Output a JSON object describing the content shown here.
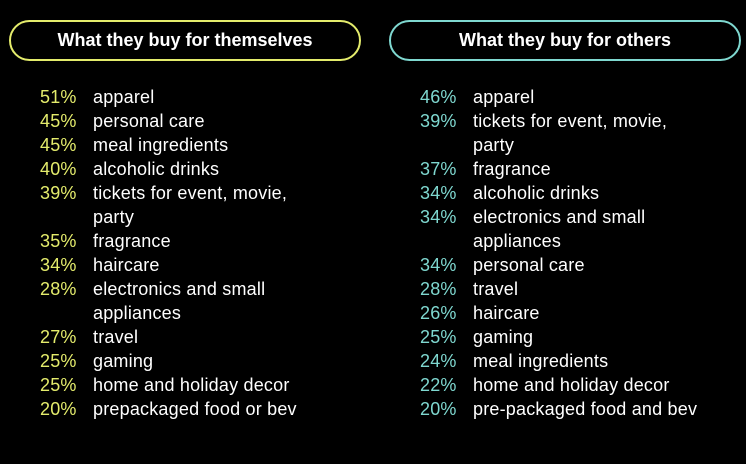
{
  "colors": {
    "left_accent": "#e4ec6c",
    "right_accent": "#7fd8d0",
    "background": "#000000",
    "text": "#ffffff"
  },
  "left": {
    "title": "What they buy for themselves",
    "items": [
      {
        "pct": "51%",
        "label": "apparel"
      },
      {
        "pct": "45%",
        "label": "personal care"
      },
      {
        "pct": "45%",
        "label": "meal ingredients"
      },
      {
        "pct": "40%",
        "label": "alcoholic drinks"
      },
      {
        "pct": "39%",
        "label": "tickets for event, movie, party"
      },
      {
        "pct": "35%",
        "label": "fragrance"
      },
      {
        "pct": "34%",
        "label": "haircare"
      },
      {
        "pct": "28%",
        "label": "electronics and small appliances"
      },
      {
        "pct": "27%",
        "label": "travel"
      },
      {
        "pct": "25%",
        "label": "gaming"
      },
      {
        "pct": "25%",
        "label": "home and holiday decor"
      },
      {
        "pct": "20%",
        "label": "prepackaged food or bev"
      }
    ]
  },
  "right": {
    "title": "What they buy for others",
    "items": [
      {
        "pct": "46%",
        "label": "apparel"
      },
      {
        "pct": "39%",
        "label": "tickets for event, movie, party"
      },
      {
        "pct": "37%",
        "label": "fragrance"
      },
      {
        "pct": "34%",
        "label": "alcoholic drinks"
      },
      {
        "pct": "34%",
        "label": "electronics and small appliances"
      },
      {
        "pct": "34%",
        "label": "personal care"
      },
      {
        "pct": "28%",
        "label": "travel"
      },
      {
        "pct": "26%",
        "label": "haircare"
      },
      {
        "pct": "25%",
        "label": "gaming"
      },
      {
        "pct": "24%",
        "label": "meal ingredients"
      },
      {
        "pct": "22%",
        "label": "home and holiday decor"
      },
      {
        "pct": "20%",
        "label": "pre-packaged food and bev"
      }
    ]
  }
}
